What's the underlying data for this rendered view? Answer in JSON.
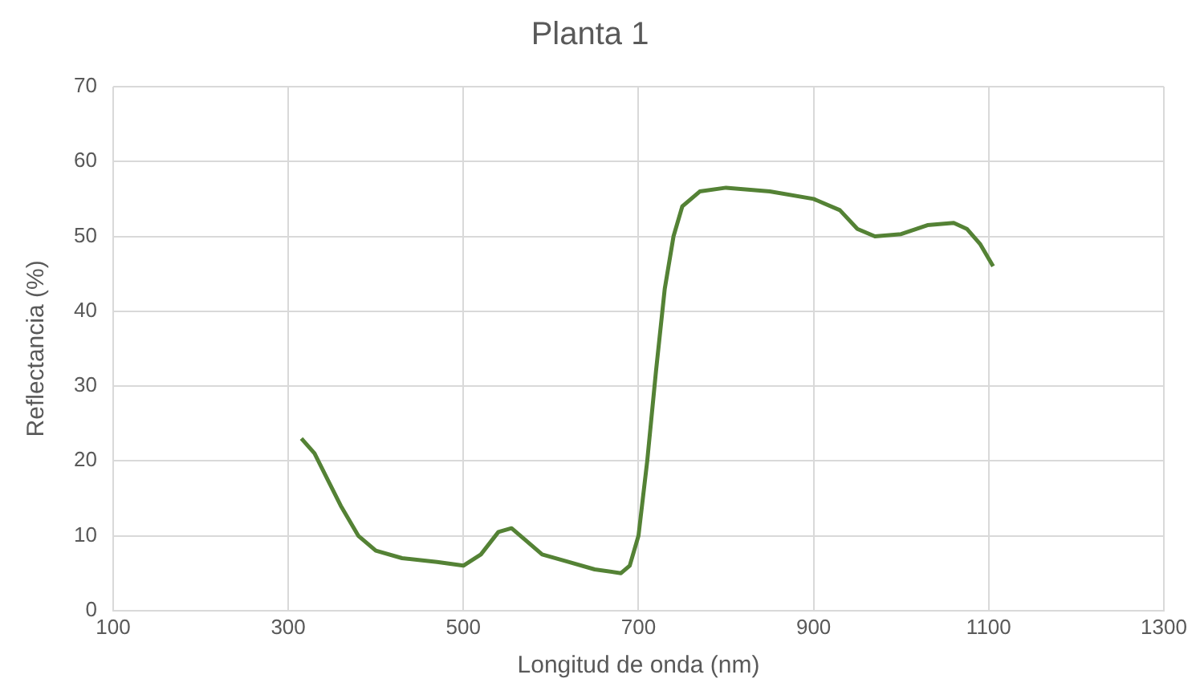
{
  "chart_data": {
    "type": "line",
    "title": "Planta 1",
    "xlabel": "Longitud de onda (nm)",
    "ylabel": "Reflectancia (%)",
    "x": [
      315,
      330,
      345,
      360,
      380,
      400,
      430,
      470,
      500,
      520,
      540,
      555,
      570,
      590,
      620,
      650,
      680,
      690,
      700,
      710,
      720,
      730,
      740,
      750,
      770,
      800,
      850,
      900,
      930,
      950,
      970,
      1000,
      1030,
      1060,
      1075,
      1090,
      1105
    ],
    "series": [
      {
        "color": "#548235",
        "values": [
          23,
          21,
          17.5,
          14,
          10,
          8,
          7,
          6.5,
          6,
          7.5,
          10.5,
          11,
          9.5,
          7.5,
          6.5,
          5.5,
          5,
          6,
          10,
          20,
          32,
          43,
          50,
          54,
          56,
          56.5,
          56,
          55,
          53.5,
          51,
          50,
          50.3,
          51.5,
          51.8,
          51,
          49,
          46
        ]
      }
    ],
    "xlim": [
      100,
      1300
    ],
    "xticks": [
      100,
      300,
      500,
      700,
      900,
      1100,
      1300
    ],
    "ylim": [
      0,
      70
    ],
    "yticks": [
      0,
      10,
      20,
      30,
      40,
      50,
      60,
      70
    ],
    "grid": true,
    "legend": false,
    "marker": "none",
    "line_style": "solid"
  }
}
